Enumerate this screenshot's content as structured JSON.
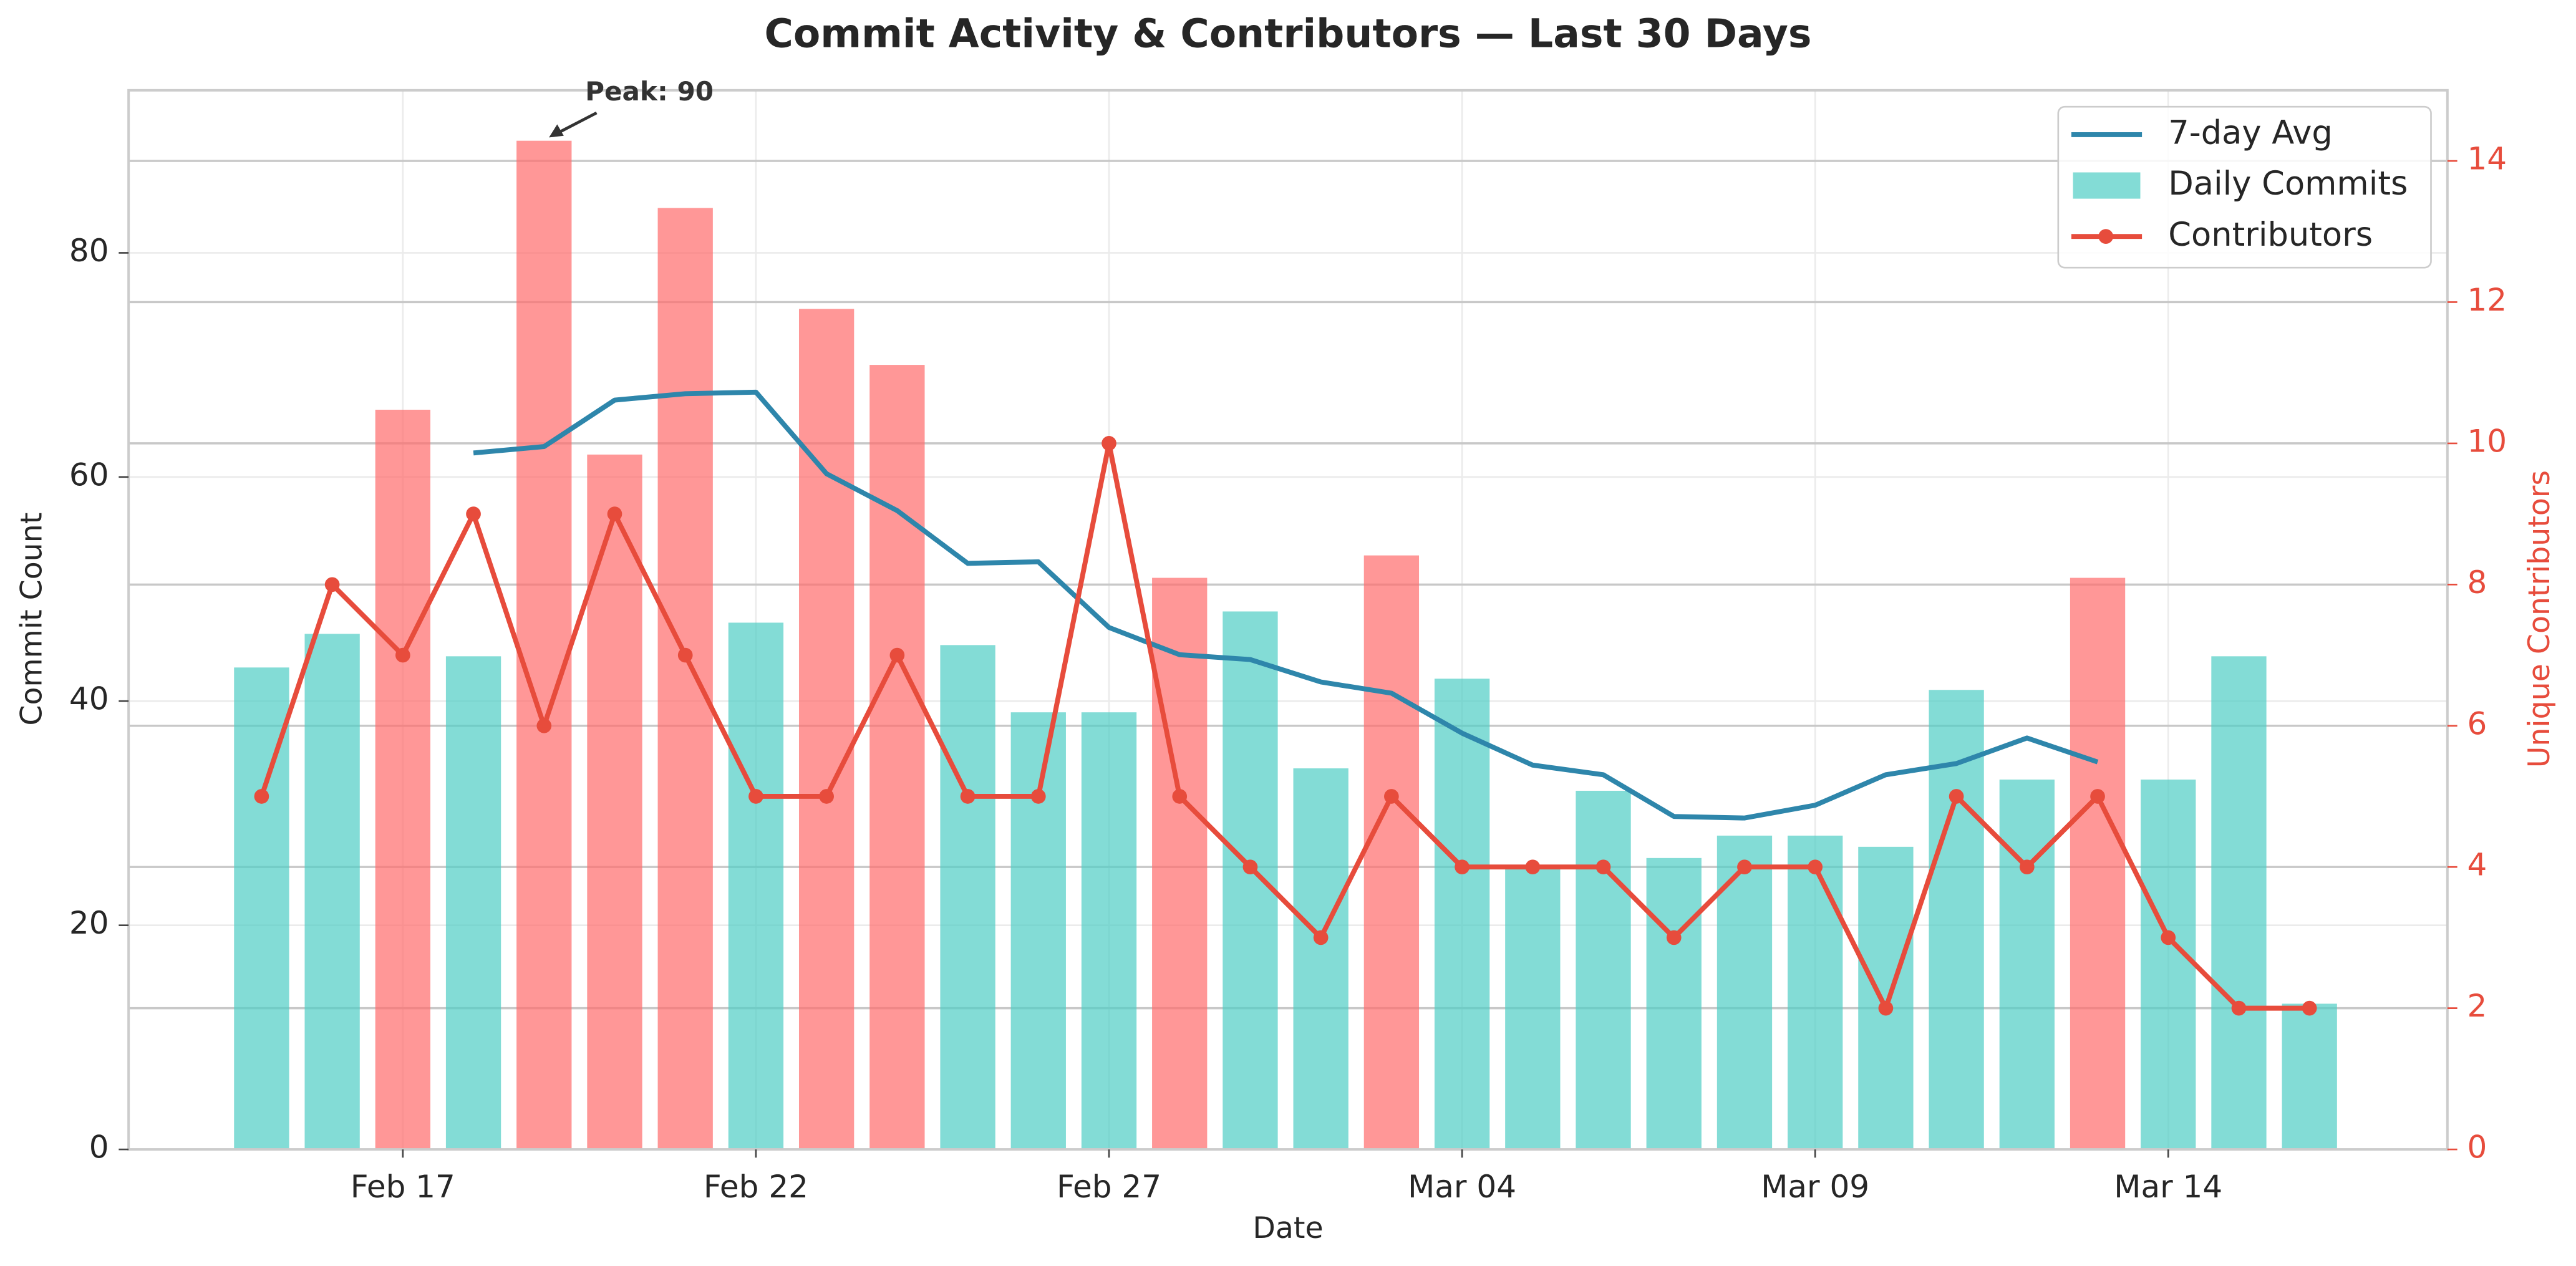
{
  "chart_data": {
    "type": "bar",
    "title": "Commit Activity & Contributors — Last 30 Days",
    "xlabel": "Date",
    "ylabel": "Commit Count",
    "y2label": "Unique Contributors",
    "categories": [
      null,
      null,
      "Feb 17",
      null,
      null,
      null,
      null,
      "Feb 22",
      null,
      null,
      null,
      null,
      "Feb 27",
      null,
      null,
      null,
      null,
      "Mar 04",
      null,
      null,
      null,
      null,
      "Mar 09",
      null,
      null,
      null,
      null,
      "Mar 14",
      null,
      null
    ],
    "ylim": [
      0,
      94.5
    ],
    "yticks": [
      0,
      20,
      40,
      60,
      80
    ],
    "y2lim": [
      0,
      15
    ],
    "y2ticks": [
      0,
      2,
      4,
      6,
      8,
      10,
      12,
      14
    ],
    "grid": true,
    "legend": "upper right",
    "series": [
      {
        "name": "7-day Avg",
        "type": "line",
        "color": "#2e86ab",
        "values": [
          null,
          null,
          null,
          62.14,
          62.71,
          66.86,
          67.43,
          67.57,
          60.29,
          57.0,
          52.29,
          52.43,
          46.57,
          44.14,
          43.71,
          41.71,
          40.71,
          37.14,
          34.29,
          33.43,
          29.71,
          29.57,
          30.71,
          33.43,
          34.43,
          36.71,
          34.57,
          null,
          null,
          null
        ]
      },
      {
        "name": "Daily Commits",
        "type": "bar",
        "color": "#4ecdc4",
        "colors": [
          "#4ecdc4",
          "#4ecdc4",
          "#ff6b6b",
          "#4ecdc4",
          "#ff6b6b",
          "#ff6b6b",
          "#ff6b6b",
          "#4ecdc4",
          "#ff6b6b",
          "#ff6b6b",
          "#4ecdc4",
          "#4ecdc4",
          "#4ecdc4",
          "#ff6b6b",
          "#4ecdc4",
          "#4ecdc4",
          "#ff6b6b",
          "#4ecdc4",
          "#4ecdc4",
          "#4ecdc4",
          "#4ecdc4",
          "#4ecdc4",
          "#4ecdc4",
          "#4ecdc4",
          "#4ecdc4",
          "#4ecdc4",
          "#ff6b6b",
          "#4ecdc4",
          "#4ecdc4",
          "#4ecdc4"
        ],
        "values": [
          43,
          46,
          66,
          44,
          90,
          62,
          84,
          47,
          75,
          70,
          45,
          39,
          39,
          51,
          48,
          34,
          53,
          42,
          25,
          32,
          26,
          28,
          28,
          27,
          41,
          33,
          51,
          33,
          44,
          13
        ]
      },
      {
        "name": "Contributors",
        "type": "line",
        "axis": "y2",
        "color": "#e74c3c",
        "marker": true,
        "values": [
          5,
          8,
          7,
          9,
          6,
          9,
          7,
          5,
          5,
          7,
          5,
          5,
          10,
          5,
          4,
          3,
          5,
          4,
          4,
          4,
          3,
          4,
          4,
          2,
          5,
          4,
          5,
          3,
          2,
          2
        ]
      }
    ],
    "annotations": [
      {
        "text": "Peak: 90",
        "index": 4,
        "series": 1
      }
    ]
  }
}
